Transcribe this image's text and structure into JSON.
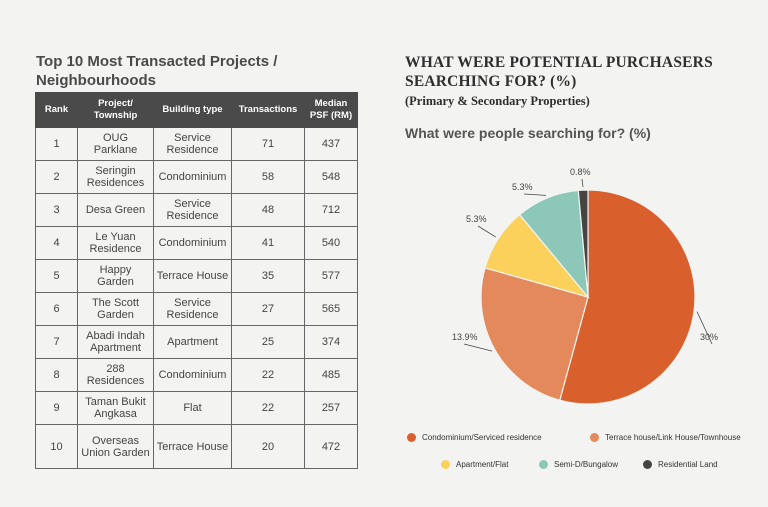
{
  "table_title": "Top 10 Most Transacted Projects / Neighbourhoods",
  "table": {
    "headers": [
      "Rank",
      "Project/ Township",
      "Building type",
      "Transactions",
      "Median PSF (RM)"
    ],
    "rows": [
      {
        "rank": "1",
        "project": "OUG Parklane",
        "type": "Service Residence",
        "transactions": "71",
        "psf": "437"
      },
      {
        "rank": "2",
        "project": "Seringin Residences",
        "type": "Condominium",
        "transactions": "58",
        "psf": "548"
      },
      {
        "rank": "3",
        "project": "Desa Green",
        "type": "Service Residence",
        "transactions": "48",
        "psf": "712"
      },
      {
        "rank": "4",
        "project": "Le Yuan Residence",
        "type": "Condominium",
        "transactions": "41",
        "psf": "540"
      },
      {
        "rank": "5",
        "project": "Happy Garden",
        "type": "Terrace House",
        "transactions": "35",
        "psf": "577"
      },
      {
        "rank": "6",
        "project": "The Scott Garden",
        "type": "Service Residence",
        "transactions": "27",
        "psf": "565"
      },
      {
        "rank": "7",
        "project": "Abadi Indah Apartment",
        "type": "Apartment",
        "transactions": "25",
        "psf": "374"
      },
      {
        "rank": "8",
        "project": "288 Residences",
        "type": "Condominium",
        "transactions": "22",
        "psf": "485"
      },
      {
        "rank": "9",
        "project": "Taman Bukit Angkasa",
        "type": "Flat",
        "transactions": "22",
        "psf": "257"
      },
      {
        "rank": "10",
        "project": "Overseas Union Garden",
        "type": "Terrace House",
        "transactions": "20",
        "psf": "472"
      }
    ]
  },
  "section_title": "WHAT WERE POTENTIAL PURCHASERS SEARCHING FOR? (%)",
  "section_subtitle": "(Primary & Secondary Properties)",
  "chart_data": {
    "type": "pie",
    "title": "What were people searching for? (%)",
    "slices": [
      {
        "name": "Condominium/Serviced residence",
        "label": "30%",
        "value": 30,
        "color": "#d9602c"
      },
      {
        "name": "Terrace house/Link House/Townhouse",
        "label": "13.9%",
        "value": 13.9,
        "color": "#e4895b"
      },
      {
        "name": "Apartment/Flat",
        "label": "5.3%",
        "value": 5.3,
        "color": "#fbd15c"
      },
      {
        "name": "Semi-D/Bungalow",
        "label": "5.3%",
        "value": 5.3,
        "color": "#8cc7b7"
      },
      {
        "name": "Residential Land",
        "label": "0.8%",
        "value": 0.8,
        "color": "#444444"
      }
    ],
    "legend_position": "bottom"
  }
}
